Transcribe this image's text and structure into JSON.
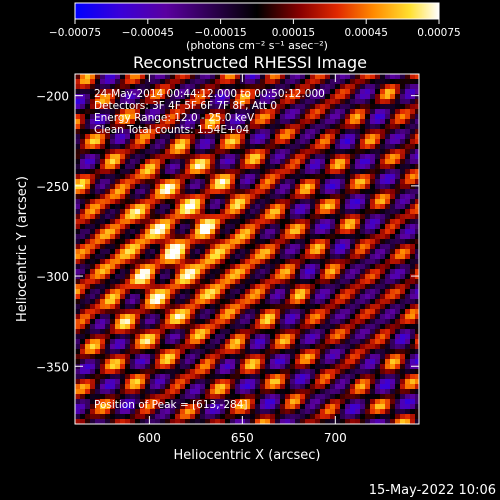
{
  "chart_data": {
    "type": "heatmap",
    "title": "Reconstructed RHESSI Image",
    "xlabel": "Heliocentric X (arcsec)",
    "ylabel": "Heliocentric Y (arcsec)",
    "xlim": [
      560,
      745
    ],
    "ylim": [
      -382,
      -188
    ],
    "x_ticks": [
      {
        "value": 600,
        "label": "600"
      },
      {
        "value": 650,
        "label": "650"
      },
      {
        "value": 700,
        "label": "700"
      }
    ],
    "y_ticks": [
      {
        "value": -200,
        "label": "−200"
      },
      {
        "value": -250,
        "label": "−250"
      },
      {
        "value": -300,
        "label": "−300"
      },
      {
        "value": -350,
        "label": "−350"
      }
    ],
    "colorbar": {
      "range": [
        -0.00075,
        0.00075
      ],
      "ticks": [
        {
          "value": -0.00075,
          "label": "−0.00075"
        },
        {
          "value": -0.00045,
          "label": "−0.00045"
        },
        {
          "value": -0.00015,
          "label": "−0.00015"
        },
        {
          "value": 0.00015,
          "label": "0.00015"
        },
        {
          "value": 0.00045,
          "label": "0.00045"
        },
        {
          "value": 0.00075,
          "label": "0.00075"
        }
      ],
      "unit_label": "(photons cm⁻² s⁻¹ asec⁻²)",
      "colors": [
        "#0000ff",
        "#3a00d8",
        "#5a00a0",
        "#000000",
        "#7a0000",
        "#d02000",
        "#ff7a00",
        "#ffd820",
        "#ffffff"
      ]
    },
    "annotations": [
      "24-May-2014 00:44:12.000 to 00:50:12.000",
      "Detectors: 3F 4F 5F 6F 7F 8F, Att 0",
      "Energy Range: 12.0 - 25.0 keV",
      "Clean     Total counts: 1.54E+04"
    ],
    "peak_label": "Position of Peak = [613,-284]",
    "peak": {
      "x": 613,
      "y": -284
    }
  },
  "footer": {
    "date": "15-May-2022 10:06"
  }
}
